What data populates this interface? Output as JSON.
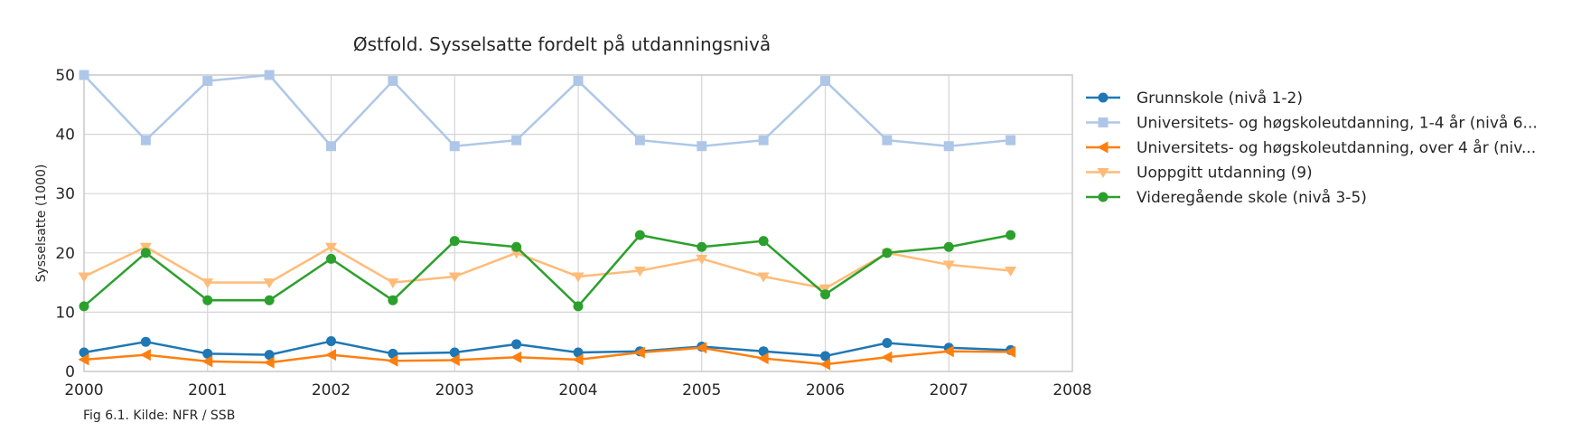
{
  "chart_data": {
    "type": "line",
    "title": "Østfold. Sysselsatte fordelt på utdanningsnivå",
    "xlabel": "",
    "ylabel": "Sysselsatte (1000)",
    "caption": "Fig 6.1. Kilde: NFR / SSB",
    "xlim": [
      2000,
      2008
    ],
    "ylim": [
      0,
      50
    ],
    "x_ticks": [
      "2000",
      "2001",
      "2002",
      "2003",
      "2004",
      "2005",
      "2006",
      "2007",
      "2008"
    ],
    "y_ticks": [
      "0",
      "10",
      "20",
      "30",
      "40",
      "50"
    ],
    "grid": true,
    "legend_position": "right",
    "x": [
      2000,
      2000.5,
      2001,
      2001.5,
      2002,
      2002.5,
      2003,
      2003.5,
      2004,
      2004.5,
      2005,
      2005.5,
      2006,
      2006.5,
      2007,
      2007.5
    ],
    "series": [
      {
        "name": "Grunnskole (nivå 1-2)",
        "color": "#1f77b4",
        "marker": "circle",
        "values": [
          3.2,
          5.0,
          3.0,
          2.8,
          5.1,
          3.0,
          3.2,
          4.6,
          3.2,
          3.4,
          4.2,
          3.4,
          2.6,
          4.8,
          4.0,
          3.6
        ]
      },
      {
        "name": "Universitets- og høgskoleutdanning, 1-4 år (nivå 6...",
        "color": "#aec7e8",
        "marker": "square",
        "values": [
          50,
          39,
          49,
          50,
          38,
          49,
          38,
          39,
          49,
          39,
          38,
          39,
          49,
          39,
          38,
          39
        ]
      },
      {
        "name": "Universitets- og høgskoleutdanning, over 4 år (niv...",
        "color": "#ff7f0e",
        "marker": "triangle-left",
        "values": [
          2.0,
          2.8,
          1.7,
          1.5,
          2.8,
          1.8,
          1.9,
          2.4,
          2.0,
          3.2,
          4.0,
          2.2,
          1.2,
          2.4,
          3.4,
          3.3
        ]
      },
      {
        "name": "Uoppgitt utdanning (9)",
        "color": "#ffbb78",
        "marker": "triangle-down",
        "values": [
          16,
          21,
          15,
          15,
          21,
          15,
          16,
          20,
          16,
          17,
          19,
          16,
          14,
          20,
          18,
          17
        ]
      },
      {
        "name": "Videregående skole (nivå 3-5)",
        "color": "#2ca02c",
        "marker": "circle",
        "values": [
          11,
          20,
          12,
          12,
          19,
          12,
          22,
          21,
          11,
          23,
          21,
          22,
          13,
          20,
          21,
          23
        ]
      }
    ]
  }
}
